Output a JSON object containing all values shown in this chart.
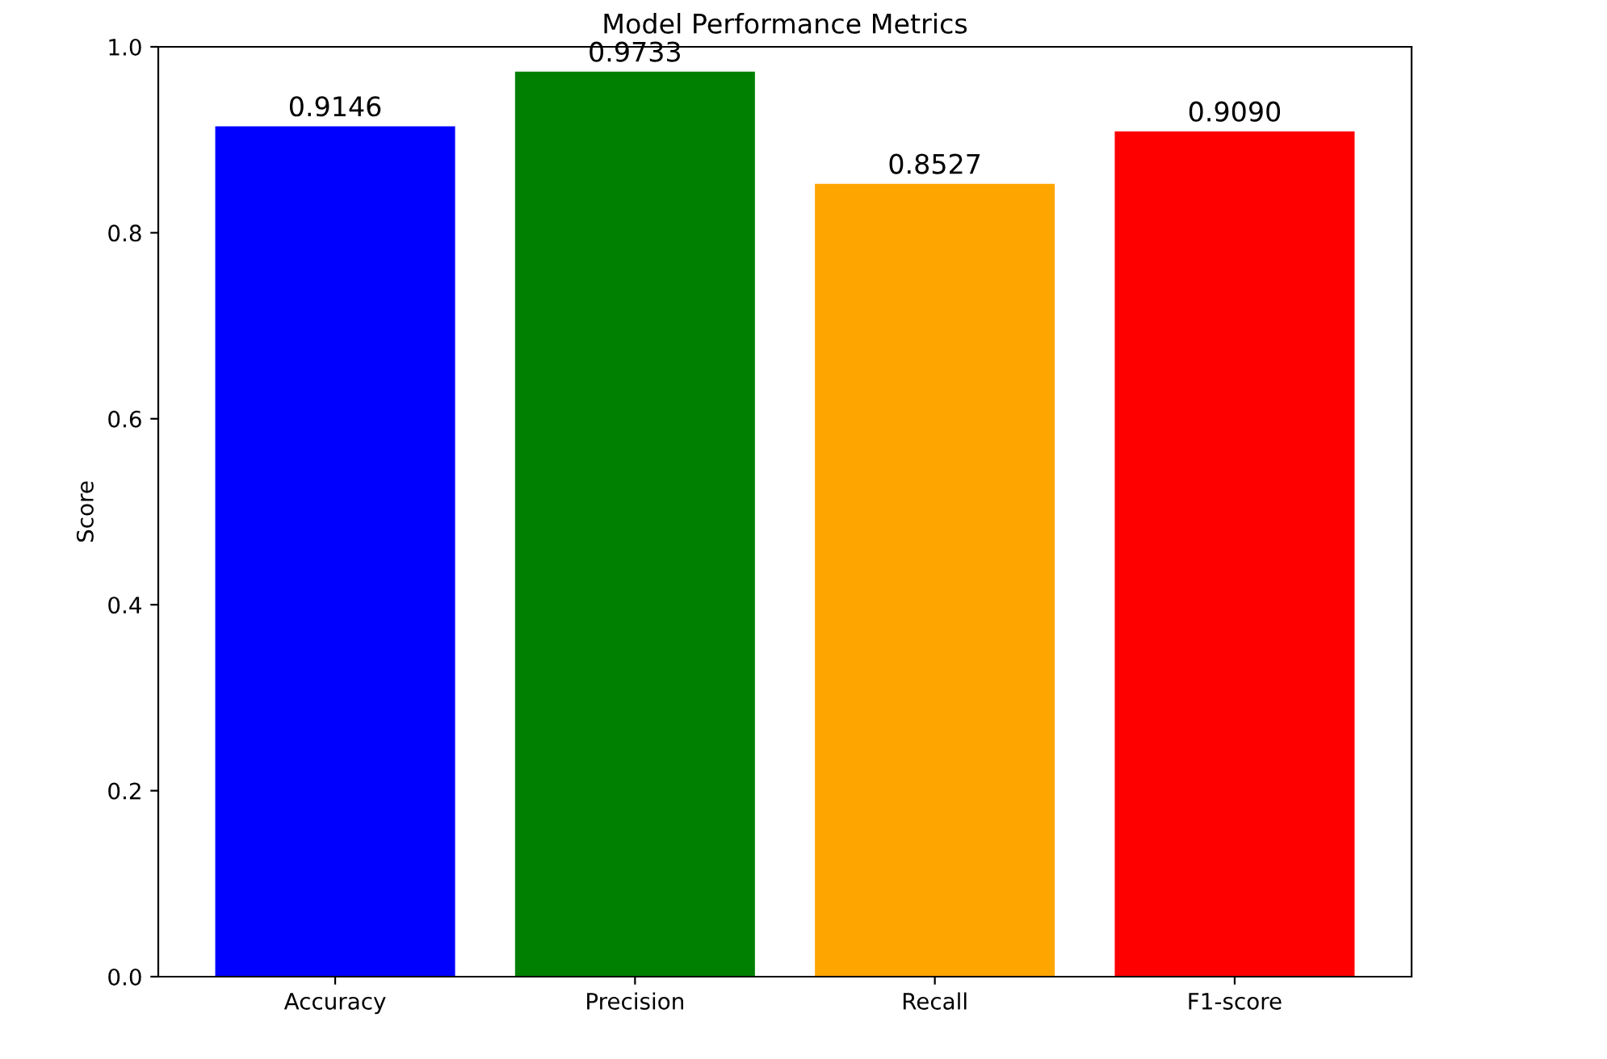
{
  "chart_data": {
    "type": "bar",
    "title": "Model Performance Metrics",
    "ylabel": "Score",
    "categories": [
      "Accuracy",
      "Precision",
      "Recall",
      "F1-score"
    ],
    "values": [
      0.9146,
      0.9733,
      0.8527,
      0.909
    ],
    "value_labels": [
      "0.9146",
      "0.9733",
      "0.8527",
      "0.9090"
    ],
    "colors": [
      "#0000ff",
      "#008000",
      "#ffa500",
      "#ff0000"
    ],
    "ylim": [
      0,
      1.0
    ],
    "yticks": [
      {
        "value": 0,
        "label": "0.0"
      },
      0.2,
      0.4,
      0.6,
      0.8,
      {
        "value": 1.0,
        "label": "1.0"
      }
    ],
    "grid": false,
    "legend": false
  }
}
